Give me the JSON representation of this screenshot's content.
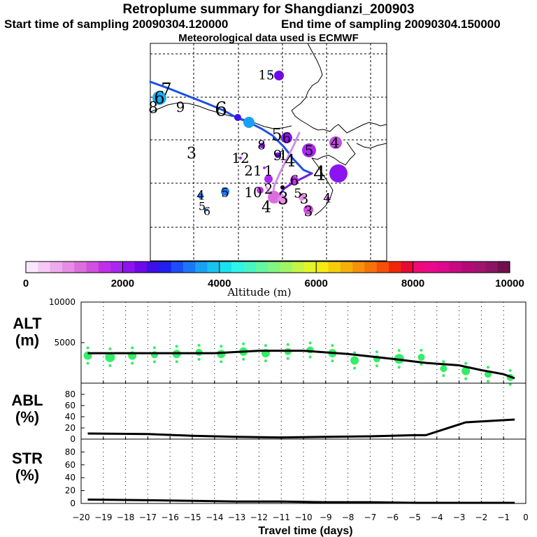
{
  "header": {
    "title": "Retroplume summary for Shangdianzi_200903",
    "start": "Start time of sampling 20090304.120000",
    "end": "End time of sampling 20090304.150000",
    "met": "Meteorological data used is ECMWF"
  },
  "colorbar": {
    "label": "Altitude (m)",
    "min": 0,
    "max": 10000,
    "tick_labels": [
      "0",
      "2000",
      "4000",
      "6000",
      "8000",
      "10000"
    ],
    "colors": [
      "#fce6fc",
      "#f5c8f5",
      "#eeaaee",
      "#e68ce6",
      "#dc6edc",
      "#d050e0",
      "#c030e8",
      "#a828f0",
      "#8c14f0",
      "#6e0ae6",
      "#3c10e6",
      "#2020f0",
      "#1e4cf5",
      "#1a78f5",
      "#1aa0f5",
      "#19c3f0",
      "#19e1f0",
      "#2ef5e6",
      "#46f5c3",
      "#64f5a0",
      "#82f582",
      "#a0f564",
      "#c3f546",
      "#e1f528",
      "#f5eb14",
      "#f5cd0a",
      "#f5af0a",
      "#f5910a",
      "#f5730a",
      "#f5500a",
      "#f0280a",
      "#e60a32",
      "#f00a78",
      "#eb0a8c",
      "#dc0a8c",
      "#c80a82",
      "#b40a78",
      "#a0146e",
      "#8c1464",
      "#70104f"
    ]
  },
  "map": {
    "trajectory_labels": [
      {
        "text": "7",
        "x": 238,
        "y": 128,
        "size": 24
      },
      {
        "text": "6",
        "x": 228,
        "y": 140,
        "size": 24
      },
      {
        "text": "8",
        "x": 219,
        "y": 155,
        "size": 22
      },
      {
        "text": "9",
        "x": 258,
        "y": 153,
        "size": 20
      },
      {
        "text": "6",
        "x": 316,
        "y": 156,
        "size": 28
      },
      {
        "text": "3",
        "x": 274,
        "y": 220,
        "size": 22
      },
      {
        "text": "15",
        "x": 381,
        "y": 108,
        "size": 18
      },
      {
        "text": "5",
        "x": 396,
        "y": 193,
        "size": 24
      },
      {
        "text": "6",
        "x": 410,
        "y": 197,
        "size": 20
      },
      {
        "text": "8",
        "x": 374,
        "y": 208,
        "size": 18
      },
      {
        "text": "12",
        "x": 344,
        "y": 226,
        "size": 20
      },
      {
        "text": "9",
        "x": 397,
        "y": 222,
        "size": 20
      },
      {
        "text": "1",
        "x": 405,
        "y": 222,
        "size": 20
      },
      {
        "text": "4",
        "x": 415,
        "y": 230,
        "size": 24
      },
      {
        "text": "21",
        "x": 362,
        "y": 244,
        "size": 20
      },
      {
        "text": "1",
        "x": 384,
        "y": 244,
        "size": 20
      },
      {
        "text": "4",
        "x": 457,
        "y": 248,
        "size": 28
      },
      {
        "text": "6",
        "x": 421,
        "y": 258,
        "size": 20
      },
      {
        "text": "10",
        "x": 362,
        "y": 275,
        "size": 20
      },
      {
        "text": "2",
        "x": 384,
        "y": 270,
        "size": 20
      },
      {
        "text": "5",
        "x": 426,
        "y": 277,
        "size": 18
      },
      {
        "text": "3",
        "x": 405,
        "y": 284,
        "size": 24
      },
      {
        "text": "3",
        "x": 435,
        "y": 284,
        "size": 20
      },
      {
        "text": "4",
        "x": 381,
        "y": 297,
        "size": 22
      },
      {
        "text": "3",
        "x": 441,
        "y": 302,
        "size": 20
      },
      {
        "text": "4",
        "x": 468,
        "y": 284,
        "size": 18
      },
      {
        "text": "4",
        "x": 287,
        "y": 280,
        "size": 18
      },
      {
        "text": "5",
        "x": 289,
        "y": 295,
        "size": 16
      },
      {
        "text": "6",
        "x": 296,
        "y": 302,
        "size": 16
      },
      {
        "text": "5",
        "x": 322,
        "y": 276,
        "size": 18
      },
      {
        "text": "5",
        "x": 442,
        "y": 215,
        "size": 20
      },
      {
        "text": "4",
        "x": 479,
        "y": 204,
        "size": 20
      }
    ]
  },
  "chart_data": [
    {
      "type": "line",
      "panel": "ALT",
      "title": "ALT",
      "ylabel": "ALT (m)",
      "xlabel": "Travel time (days)",
      "xlim": [
        -20,
        0
      ],
      "ylim": [
        0,
        10000
      ],
      "y_tick_labels": [
        "5000",
        "10000"
      ],
      "x": [
        -19.7,
        -18,
        -16,
        -14,
        -12,
        -10,
        -8,
        -6,
        -4.5,
        -3,
        -2,
        -1,
        -0.5
      ],
      "values": [
        3700,
        3700,
        3700,
        3700,
        4000,
        4000,
        3600,
        3000,
        2500,
        2200,
        1600,
        1100,
        600
      ],
      "cluster_centers": [
        {
          "x": -19.7,
          "y": 3400,
          "r": 6
        },
        {
          "x": -18.7,
          "y": 3200,
          "r": 7
        },
        {
          "x": -17.7,
          "y": 3400,
          "r": 6
        },
        {
          "x": -16.7,
          "y": 3500,
          "r": 5
        },
        {
          "x": -15.7,
          "y": 3600,
          "r": 6
        },
        {
          "x": -14.7,
          "y": 3800,
          "r": 5
        },
        {
          "x": -13.7,
          "y": 3600,
          "r": 6
        },
        {
          "x": -12.7,
          "y": 3900,
          "r": 6
        },
        {
          "x": -11.7,
          "y": 3700,
          "r": 6
        },
        {
          "x": -10.7,
          "y": 3900,
          "r": 5
        },
        {
          "x": -9.7,
          "y": 4100,
          "r": 5
        },
        {
          "x": -8.7,
          "y": 3700,
          "r": 6
        },
        {
          "x": -7.7,
          "y": 2800,
          "r": 6
        },
        {
          "x": -6.7,
          "y": 3000,
          "r": 5
        },
        {
          "x": -5.7,
          "y": 3000,
          "r": 7
        },
        {
          "x": -4.7,
          "y": 3200,
          "r": 5
        },
        {
          "x": -3.7,
          "y": 1800,
          "r": 5
        },
        {
          "x": -2.7,
          "y": 1500,
          "r": 6
        },
        {
          "x": -1.7,
          "y": 1100,
          "r": 5
        },
        {
          "x": -0.7,
          "y": 700,
          "r": 5
        }
      ]
    },
    {
      "type": "line",
      "panel": "ABL",
      "title": "ABL",
      "ylabel": "ABL (%)",
      "xlim": [
        -20,
        0
      ],
      "ylim": [
        0,
        100
      ],
      "y_tick_labels": [
        "0",
        "20",
        "40",
        "60",
        "80"
      ],
      "x": [
        -19.7,
        -17,
        -15,
        -13,
        -11,
        -9,
        -7,
        -5,
        -4.5,
        -2.7,
        -0.5
      ],
      "values": [
        10,
        9,
        6,
        4,
        3,
        4,
        5,
        7,
        7,
        30,
        35
      ]
    },
    {
      "type": "line",
      "panel": "STR",
      "title": "STR",
      "ylabel": "STR (%)",
      "xlim": [
        -20,
        0
      ],
      "ylim": [
        0,
        100
      ],
      "y_tick_labels": [
        "0",
        "20",
        "40",
        "60",
        "80"
      ],
      "x": [
        -19.7,
        -17,
        -15,
        -13,
        -11,
        -9,
        -7,
        -5,
        -4,
        -2,
        -0.5
      ],
      "values": [
        6,
        5,
        4,
        3,
        3,
        2,
        2,
        1,
        1,
        1,
        1
      ]
    }
  ],
  "x_axis": {
    "label": "Travel time (days)",
    "tick_labels": [
      "−20",
      "−19",
      "−18",
      "−17",
      "−16",
      "−15",
      "−14",
      "−13",
      "−12",
      "−11",
      "−10",
      "−9",
      "−8",
      "−7",
      "−6",
      "−5",
      "−4",
      "−3",
      "−2",
      "−1",
      "0"
    ]
  },
  "panel_labels": {
    "alt": [
      "ALT",
      "(m)"
    ],
    "abl": [
      "ABL",
      "(%)"
    ],
    "str": [
      "STR",
      "(%)"
    ]
  }
}
